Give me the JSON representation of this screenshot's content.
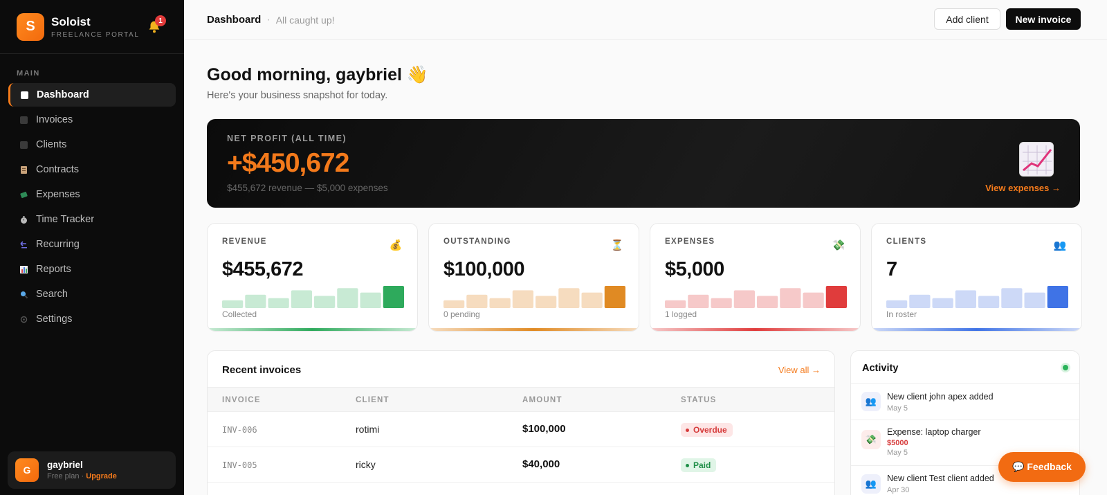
{
  "brand": {
    "name": "Soloist",
    "subtitle": "FREELANCE PORTAL",
    "logo_letter": "S",
    "notification_count": "1"
  },
  "sidebar": {
    "section": "MAIN",
    "items": [
      {
        "label": "Dashboard",
        "icon": "square-icon",
        "active": true
      },
      {
        "label": "Invoices",
        "icon": "square-icon"
      },
      {
        "label": "Clients",
        "icon": "square-icon"
      },
      {
        "label": "Contracts",
        "icon": "memo-icon"
      },
      {
        "label": "Expenses",
        "icon": "money-wings-icon"
      },
      {
        "label": "Time Tracker",
        "icon": "stopwatch-icon"
      },
      {
        "label": "Recurring",
        "icon": "back-arrow-icon"
      },
      {
        "label": "Reports",
        "icon": "bar-chart-icon"
      },
      {
        "label": "Search",
        "icon": "magnifier-icon"
      },
      {
        "label": "Settings",
        "icon": "gear-icon"
      }
    ],
    "user": {
      "initial": "G",
      "name": "gaybriel",
      "plan": "Free plan ·",
      "upgrade": "Upgrade"
    }
  },
  "topbar": {
    "title": "Dashboard",
    "separator": "·",
    "status": "All caught up!",
    "add_client": "Add client",
    "new_invoice": "New invoice"
  },
  "greeting": {
    "title": "Good morning, gaybriel 👋",
    "subtitle": "Here's your business snapshot for today."
  },
  "hero": {
    "label": "NET PROFIT (ALL TIME)",
    "value": "+$450,672",
    "detail": "$455,672 revenue — $5,000 expenses",
    "link": "View expenses →",
    "icon": "chart-increasing-icon"
  },
  "stats": [
    {
      "label": "REVENUE",
      "value": "$455,672",
      "foot": "Collected",
      "icon": "💰",
      "accent": "#2eaa5c",
      "light": "#c8ead4",
      "bars": [
        0.35,
        0.6,
        0.45,
        0.8,
        0.55,
        0.9,
        0.7,
        1.0
      ]
    },
    {
      "label": "OUTSTANDING",
      "value": "$100,000",
      "foot": "0 pending",
      "icon": "⏳",
      "accent": "#e08a23",
      "light": "#f6dcbf",
      "bars": [
        0.35,
        0.6,
        0.45,
        0.8,
        0.55,
        0.9,
        0.7,
        1.0
      ]
    },
    {
      "label": "EXPENSES",
      "value": "$5,000",
      "foot": "1 logged",
      "icon": "💸",
      "accent": "#e03c3c",
      "light": "#f6c9c9",
      "bars": [
        0.35,
        0.6,
        0.45,
        0.8,
        0.55,
        0.9,
        0.7,
        1.0
      ]
    },
    {
      "label": "CLIENTS",
      "value": "7",
      "foot": "In roster",
      "icon": "👥",
      "accent": "#3f73e6",
      "light": "#cdd9f7",
      "bars": [
        0.35,
        0.6,
        0.45,
        0.8,
        0.55,
        0.9,
        0.7,
        1.0
      ]
    }
  ],
  "invoices": {
    "title": "Recent invoices",
    "link": "View all →",
    "columns": [
      "INVOICE",
      "CLIENT",
      "AMOUNT",
      "STATUS"
    ],
    "rows": [
      {
        "id": "INV-006",
        "client": "rotimi",
        "amount": "$100,000",
        "status": "Overdue",
        "status_color": "#d63b3b",
        "status_bg": "#fde6e6"
      },
      {
        "id": "INV-005",
        "client": "ricky",
        "amount": "$40,000",
        "status": "Paid",
        "status_color": "#1f8f48",
        "status_bg": "#e0f5e7"
      }
    ]
  },
  "activity": {
    "title": "Activity",
    "items": [
      {
        "text": "New client john apex added",
        "date": "May 5",
        "icon": "👥"
      },
      {
        "text": "Expense: laptop charger",
        "amount": "$5000",
        "date": "May 5",
        "icon": "💸"
      },
      {
        "text": "New client Test client added",
        "date": "Apr 30",
        "icon": "👥"
      }
    ]
  },
  "feedback": "💬 Feedback"
}
